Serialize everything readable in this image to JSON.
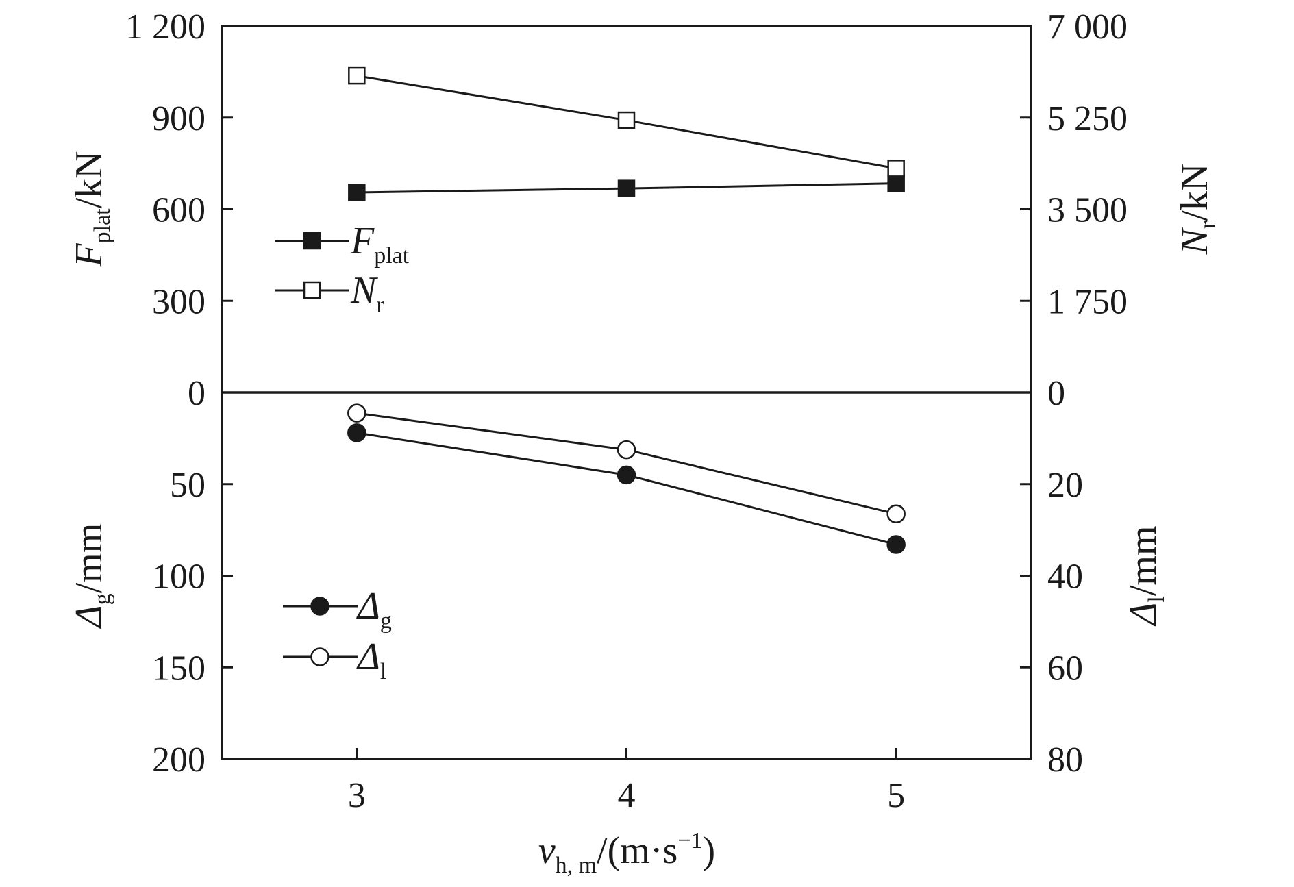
{
  "chart_data": [
    {
      "type": "line",
      "panel": "top",
      "x": [
        3,
        4,
        5
      ],
      "left_axis": {
        "label_main": "F",
        "label_sub": "plat",
        "label_unit": "/kN",
        "range": [
          0,
          1200
        ],
        "ticks": [
          "0",
          "300",
          "600",
          "900",
          "1 200"
        ]
      },
      "right_axis": {
        "label_main": "N",
        "label_sub": "r",
        "label_unit": "/kN",
        "range": [
          0,
          7000
        ],
        "ticks": [
          "0",
          "1 750",
          "3 500",
          "5 250",
          "7 000"
        ]
      },
      "series": [
        {
          "name_main": "F",
          "name_sub": "plat",
          "axis": "left",
          "marker": "square-filled",
          "values": [
            655,
            668,
            685
          ]
        },
        {
          "name_main": "N",
          "name_sub": "r",
          "axis": "right",
          "marker": "square-open",
          "values": [
            6050,
            5200,
            4280
          ]
        }
      ],
      "legend": "left-middle"
    },
    {
      "type": "line",
      "panel": "bottom",
      "x": [
        3,
        4,
        5
      ],
      "left_axis": {
        "label_main": "Δ",
        "label_sub": "g",
        "label_unit": "/mm",
        "range": [
          0,
          200
        ],
        "inverted": true,
        "ticks": [
          "50",
          "100",
          "150",
          "200"
        ]
      },
      "right_axis": {
        "label_main": "Δ",
        "label_sub": "l",
        "label_unit": "/mm",
        "range": [
          0,
          80
        ],
        "inverted": true,
        "ticks": [
          "20",
          "40",
          "60",
          "80"
        ]
      },
      "series": [
        {
          "name_main": "Δ",
          "name_sub": "g",
          "axis": "left",
          "marker": "circle-filled",
          "values": [
            22,
            45,
            83
          ]
        },
        {
          "name_main": "Δ",
          "name_sub": "l",
          "axis": "right",
          "marker": "circle-open",
          "values": [
            4.5,
            12.5,
            26.5
          ]
        }
      ],
      "legend": "left-middle"
    }
  ],
  "x_axis": {
    "ticks": [
      "3",
      "4",
      "5"
    ],
    "label_main": "v",
    "label_sub": "h, m",
    "label_unit_open": "/(m·s",
    "label_sup": "−1",
    "label_unit_close": ")"
  }
}
